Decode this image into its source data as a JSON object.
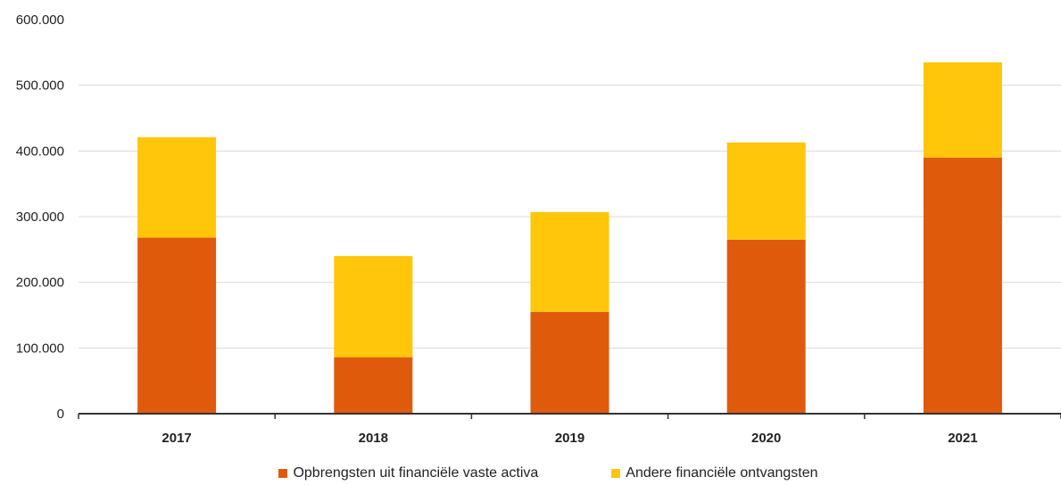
{
  "chart_data": {
    "type": "bar",
    "stacked": true,
    "categories": [
      "2017",
      "2018",
      "2019",
      "2020",
      "2021"
    ],
    "series": [
      {
        "name": "Opbrengsten uit financiële vaste activa",
        "color": "#e05a0c",
        "values": [
          268000,
          86000,
          155000,
          265000,
          390000
        ]
      },
      {
        "name": "Andere financiële ontvangsten",
        "color": "#ffc60a",
        "values": [
          153000,
          154000,
          152000,
          148000,
          145000
        ]
      }
    ],
    "ylim": [
      0,
      600000
    ],
    "yticks": [
      0,
      100000,
      200000,
      300000,
      400000,
      500000,
      600000
    ],
    "ytick_labels": [
      "0",
      "100.000",
      "200.000",
      "300.000",
      "400.000",
      "500.000",
      "600.000"
    ],
    "grid": true,
    "legend": "bottom-center",
    "title": "",
    "xlabel": "",
    "ylabel": ""
  }
}
